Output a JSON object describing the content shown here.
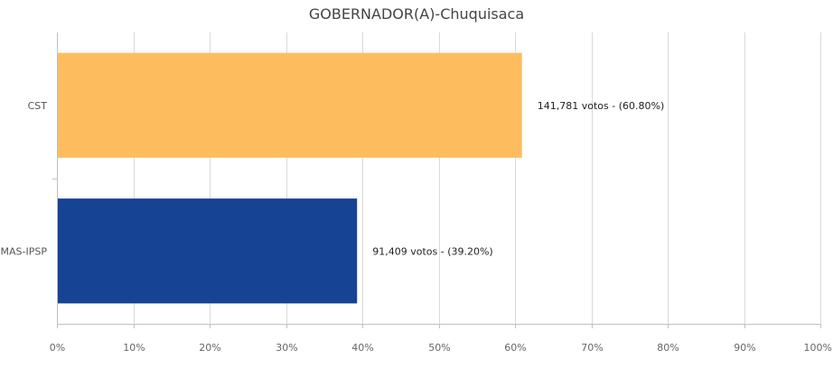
{
  "chart_data": {
    "type": "bar",
    "orientation": "horizontal",
    "title": "GOBERNADOR(A)-Chuquisaca",
    "categories": [
      "CST",
      "MAS-IPSP"
    ],
    "values": [
      60.8,
      39.2
    ],
    "votes": [
      "141,781",
      "91,409"
    ],
    "data_labels": [
      "141,781 votos - (60.80%)",
      "91,409 votos - (39.20%)"
    ],
    "colors": [
      "#FDBD5F",
      "#174395"
    ],
    "xlim": [
      0,
      100
    ],
    "x_ticks": [
      0,
      10,
      20,
      30,
      40,
      50,
      60,
      70,
      80,
      90,
      100
    ],
    "x_tick_labels": [
      "0%",
      "10%",
      "20%",
      "30%",
      "40%",
      "50%",
      "60%",
      "70%",
      "80%",
      "90%",
      "100%"
    ],
    "grid": true,
    "legend": "none"
  }
}
